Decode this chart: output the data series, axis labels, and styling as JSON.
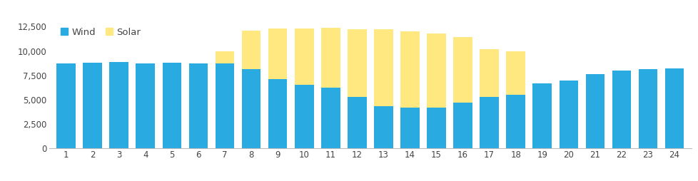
{
  "hours": [
    1,
    2,
    3,
    4,
    5,
    6,
    7,
    8,
    9,
    10,
    11,
    12,
    13,
    14,
    15,
    16,
    17,
    18,
    19,
    20,
    21,
    22,
    23,
    24
  ],
  "wind": [
    8700,
    8800,
    8850,
    8750,
    8800,
    8700,
    8700,
    8100,
    7100,
    6500,
    6200,
    5300,
    4300,
    4200,
    4200,
    4700,
    5300,
    5500,
    6700,
    7000,
    7600,
    8000,
    8100,
    8200
  ],
  "solar": [
    0,
    0,
    0,
    0,
    0,
    0,
    1300,
    4000,
    5200,
    5800,
    6200,
    6900,
    7900,
    7800,
    7600,
    6700,
    4900,
    4500,
    0,
    0,
    0,
    0,
    0,
    0
  ],
  "wind_color": "#29ABE2",
  "solar_color": "#FFE880",
  "background_color": "#FFFFFF",
  "ylim": [
    0,
    13000
  ],
  "yticks": [
    0,
    2500,
    5000,
    7500,
    10000,
    12500
  ],
  "ytick_labels": [
    "0",
    "2,500",
    "5,000",
    "7,500",
    "10,000",
    "12,500"
  ],
  "legend_labels": [
    "Wind",
    "Solar"
  ],
  "bar_width": 0.72,
  "axis_color": "#BBBBBB",
  "tick_fontsize": 8.5,
  "legend_fontsize": 9.5,
  "tick_color": "#444444"
}
